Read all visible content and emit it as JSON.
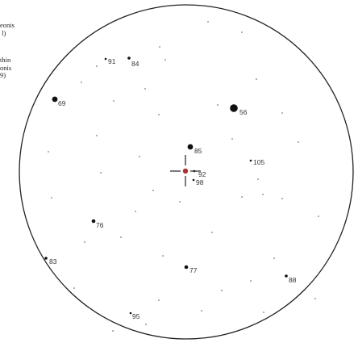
{
  "notes": {
    "note1": "eonis\n l)",
    "note2": "thin\nonis\n9)"
  },
  "stars": [
    {
      "label": "91",
      "mag": 1
    },
    {
      "label": "84",
      "mag": 2
    },
    {
      "label": "69",
      "mag": 4
    },
    {
      "label": "56",
      "mag": 5
    },
    {
      "label": "85",
      "mag": 4
    },
    {
      "label": "105",
      "mag": 1
    },
    {
      "label": "92",
      "mag": 1
    },
    {
      "label": "98",
      "mag": 1
    },
    {
      "label": "76",
      "mag": 3
    },
    {
      "label": "83",
      "mag": 2
    },
    {
      "label": "77",
      "mag": 3
    },
    {
      "label": "88",
      "mag": 2
    },
    {
      "label": "95",
      "mag": 1
    }
  ],
  "colors": {
    "circle": "#222222",
    "star": "#111111",
    "target": "#b03030",
    "crosshair": "#222222"
  },
  "icons": {
    "crosshair": "crosshair-icon",
    "target": "target-marker-icon"
  }
}
